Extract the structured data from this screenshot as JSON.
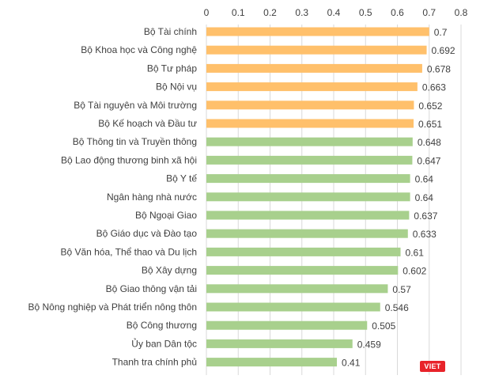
{
  "chart_data": {
    "type": "bar",
    "orientation": "horizontal",
    "title": "",
    "xlabel": "",
    "ylabel": "",
    "xlim": [
      0,
      0.8
    ],
    "ticks": [
      "0",
      "0.1",
      "0.2",
      "0.3",
      "0.4",
      "0.5",
      "0.6",
      "0.7",
      "0.8"
    ],
    "tick_values": [
      0,
      0.1,
      0.2,
      0.3,
      0.4,
      0.5,
      0.6,
      0.7,
      0.8
    ],
    "grid": true,
    "axis_position": "top",
    "colors": {
      "highlight": "#FFC06B",
      "normal": "#A8D08D",
      "grid": "#D9D9D9",
      "text": "#404040"
    },
    "highlight_count": 6,
    "categories": [
      "Bộ Tài chính",
      "Bộ Khoa học và Công nghệ",
      "Bộ Tư pháp",
      "Bộ Nội vụ",
      "Bộ Tài nguyên và Môi trường",
      "Bộ Kế hoạch và Đầu tư",
      "Bộ Thông tin và Truyền thông",
      "Bộ Lao động thương binh xã hội",
      "Bộ Y tế",
      "Ngân hàng nhà nước",
      "Bộ Ngoại Giao",
      "Bộ Giáo dục và Đào tạo",
      "Bộ Văn hóa, Thể thao và Du lịch",
      "Bộ Xây dựng",
      "Bộ Giao thông vận tải",
      "Bộ Nông nghiệp và Phát triển nông thôn",
      "Bộ Công thương",
      "Ủy ban Dân tộc",
      "Thanh tra chính phủ"
    ],
    "values": [
      0.7,
      0.692,
      0.678,
      0.663,
      0.652,
      0.651,
      0.648,
      0.647,
      0.64,
      0.64,
      0.637,
      0.633,
      0.61,
      0.602,
      0.57,
      0.546,
      0.505,
      0.459,
      0.41
    ],
    "value_labels": [
      "0.7",
      "0.692",
      "0.678",
      "0.663",
      "0.652",
      "0.651",
      "0.648",
      "0.647",
      "0.64",
      "0.64",
      "0.637",
      "0.633",
      "0.61",
      "0.602",
      "0.57",
      "0.546",
      "0.505",
      "0.459",
      "0.41"
    ]
  },
  "watermark": {
    "text": "VIET"
  }
}
